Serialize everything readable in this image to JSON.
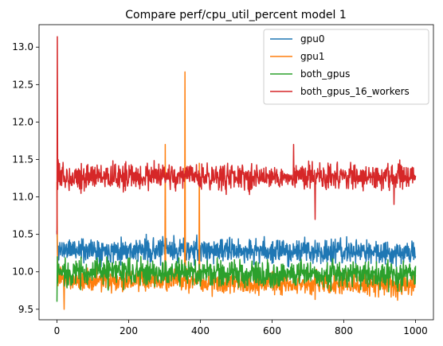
{
  "chart_data": {
    "type": "line",
    "title": "Compare perf/cpu_util_percent model 1",
    "xlabel": "",
    "ylabel": "",
    "xlim": [
      -50,
      1050
    ],
    "ylim": [
      9.36,
      13.3
    ],
    "xticks": [
      0,
      200,
      400,
      600,
      800,
      1000
    ],
    "xtick_labels": [
      "0",
      "200",
      "400",
      "600",
      "800",
      "1000"
    ],
    "yticks": [
      9.5,
      10.0,
      10.5,
      11.0,
      11.5,
      12.0,
      12.5,
      13.0
    ],
    "ytick_labels": [
      "9.5",
      "10.0",
      "10.5",
      "11.0",
      "11.5",
      "12.0",
      "12.5",
      "13.0"
    ],
    "grid": false,
    "legend_position": "top-right",
    "n_points": 1001,
    "series": [
      {
        "name": "gpu0",
        "color": "#1f77b4",
        "base": 10.3,
        "noise": 0.15,
        "trend": -0.04,
        "seed": 11,
        "spikes": [
          [
            0,
            10.55
          ],
          [
            2,
            10.05
          ]
        ]
      },
      {
        "name": "gpu1",
        "color": "#ff7f0e",
        "base": 9.9,
        "noise": 0.14,
        "trend": -0.08,
        "seed": 23,
        "spikes": [
          [
            0,
            11.2
          ],
          [
            1,
            10.4
          ],
          [
            20,
            9.5
          ],
          [
            302,
            11.7
          ],
          [
            303,
            10.2
          ],
          [
            357,
            12.67
          ],
          [
            358,
            10.3
          ],
          [
            397,
            11.45
          ],
          [
            398,
            10.0
          ]
        ]
      },
      {
        "name": "both_gpus",
        "color": "#2ca02c",
        "base": 10.0,
        "noise": 0.17,
        "trend": -0.04,
        "seed": 37,
        "spikes": [
          [
            0,
            9.6
          ],
          [
            1,
            10.2
          ],
          [
            2,
            9.85
          ]
        ]
      },
      {
        "name": "both_gpus_16_workers",
        "color": "#d62728",
        "base": 11.27,
        "noise": 0.16,
        "trend": 0.0,
        "seed": 53,
        "spikes": [
          [
            0,
            10.5
          ],
          [
            1,
            13.14
          ],
          [
            2,
            11.1
          ],
          [
            3,
            11.5
          ],
          [
            720,
            10.7
          ],
          [
            660,
            11.7
          ],
          [
            940,
            10.9
          ]
        ]
      }
    ]
  }
}
